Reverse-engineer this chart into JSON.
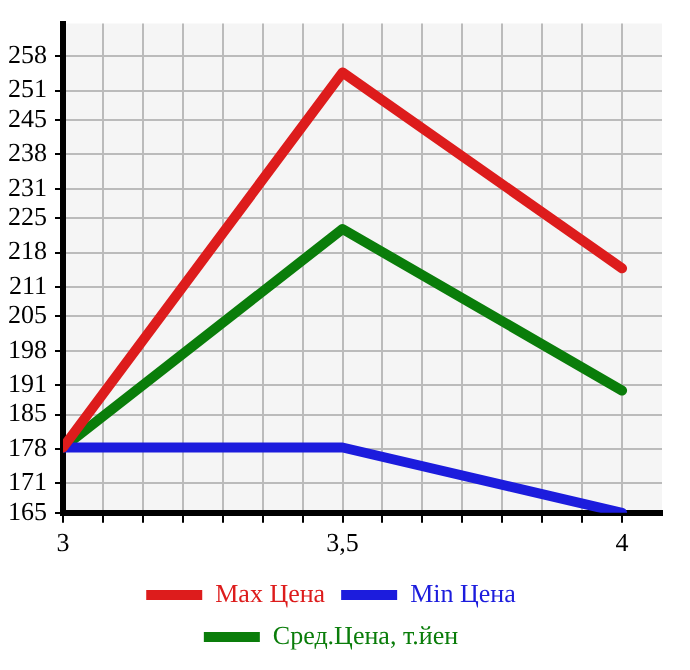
{
  "chart_data": {
    "type": "line",
    "x": [
      3,
      3.5,
      4
    ],
    "series": [
      {
        "name": "Max Цена",
        "color": "#dd1c1c",
        "values": [
          178.3,
          254.7,
          214.8
        ]
      },
      {
        "name": "Min Цена",
        "color": "#1c1cdd",
        "values": [
          178.3,
          178.3,
          165
        ]
      },
      {
        "name": "Сред.Цена, т.йен",
        "color": "#0a7d0a",
        "values": [
          178.3,
          222.8,
          189.9
        ]
      }
    ],
    "xlim": [
      3,
      4.0714
    ],
    "xticks": [
      3,
      {
        "value": 3.0714,
        "label": null
      },
      {
        "value": 3.1429,
        "label": null
      },
      {
        "value": 3.2143,
        "label": null
      },
      {
        "value": 3.2857,
        "label": null
      },
      {
        "value": 3.3571,
        "label": null
      },
      {
        "value": 3.4286,
        "label": null
      },
      {
        "value": 3.5,
        "label": "3,5"
      },
      {
        "value": 3.5714,
        "label": null
      },
      {
        "value": 3.6429,
        "label": null
      },
      {
        "value": 3.7143,
        "label": null
      },
      {
        "value": 3.7857,
        "label": null
      },
      {
        "value": 3.8571,
        "label": null
      },
      {
        "value": 3.9286,
        "label": null
      },
      4
    ],
    "ylim": [
      165,
      264.64
    ],
    "yticks": [
      165,
      171,
      178,
      185,
      191,
      198,
      205,
      211,
      218,
      225,
      231,
      238,
      245,
      251,
      258
    ],
    "grid": true,
    "legend": "bottom",
    "marker": "none",
    "line_style": "solid"
  }
}
